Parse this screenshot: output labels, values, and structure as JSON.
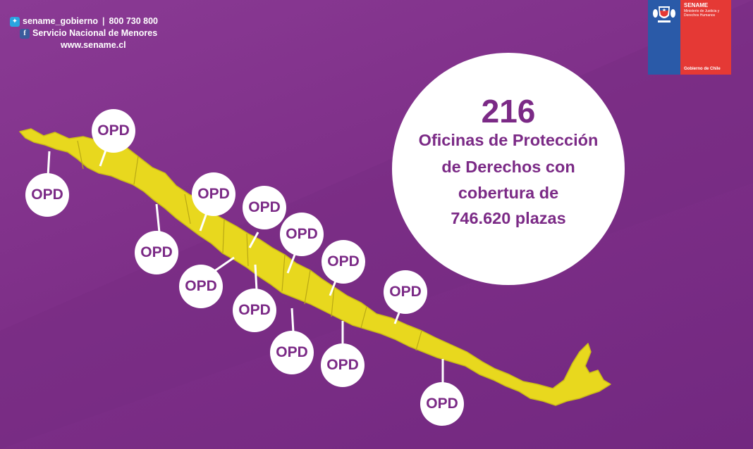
{
  "social": {
    "twitter": "sename_gobierno",
    "phone": "800 730 800",
    "facebook": "Servicio Nacional de Menores",
    "website": "www.sename.cl",
    "twitter_icon": "twitter-bird-icon",
    "facebook_icon": "facebook-f-icon"
  },
  "logo": {
    "brand": "SENAME",
    "ministry": "Ministerio de Justicia y Derechos Humanos",
    "government": "Gobierno de Chile"
  },
  "headline": {
    "number": "216",
    "lines": [
      "Oficinas de Protección",
      "de Derechos con",
      "cobertura de",
      "746.620 plazas"
    ]
  },
  "markers": {
    "label": "OPD",
    "count_shown": 14
  },
  "colors": {
    "background": "#7d2f87",
    "map_fill": "#e8d81e",
    "region_border": "#b9a814",
    "text_accent": "#7b2a86",
    "bubble": "#ffffff"
  }
}
